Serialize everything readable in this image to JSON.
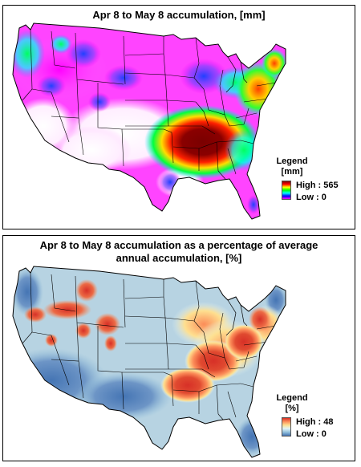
{
  "maps": [
    {
      "title": "Apr 8 to May 8 accumulation, [mm]",
      "legend": {
        "title": "Legend",
        "unit": "[mm]",
        "high_label": "High : 565",
        "low_label": "Low : 0",
        "color_ramp": [
          "#ff00ff",
          "#0000ff",
          "#00ffff",
          "#00ff00",
          "#ffff00",
          "#ff0000",
          "#800000"
        ]
      }
    },
    {
      "title": "Apr 8 to May 8 accumulation as a percentage of average annual  accumulation, [%]",
      "legend": {
        "title": "Legend",
        "unit": "[%]",
        "high_label": "High : 48",
        "low_label": "Low : 0",
        "color_ramp": [
          "#d73027",
          "#fc8d59",
          "#fee090",
          "#e0f3f8",
          "#91bfdb",
          "#4575b4"
        ]
      }
    }
  ]
}
